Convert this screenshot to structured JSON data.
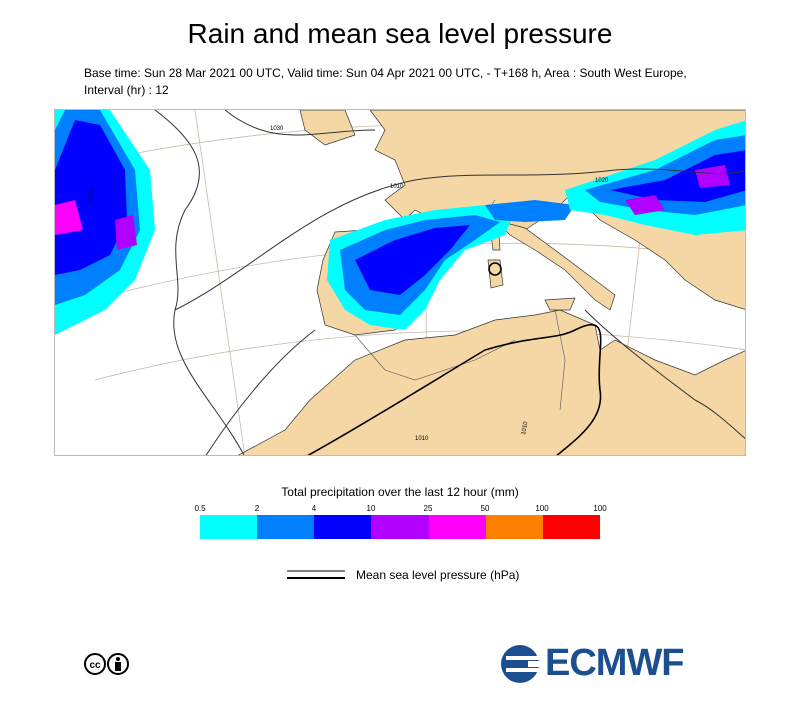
{
  "header": {
    "title": "Rain and mean sea level pressure",
    "subtitle": "Base time: Sun 28 Mar 2021 00 UTC, Valid time: Sun 04 Apr 2021 00 UTC, - T+168 h, Area : South West Europe, Interval (hr) : 12"
  },
  "map": {
    "isobar_labels": [
      "1030",
      "1020",
      "1010",
      "1010",
      "1020",
      "1010"
    ],
    "land_color": "#f5d7a6",
    "sea_color": "#ffffff"
  },
  "legend": {
    "title": "Total precipitation over the last 12 hour (mm)",
    "ticks": [
      "0.5",
      "2",
      "4",
      "10",
      "25",
      "50",
      "100",
      "100"
    ],
    "colors": [
      "#00ffff",
      "#0080ff",
      "#0000ff",
      "#b200ff",
      "#ff00ff",
      "#ff8000",
      "#ff0000"
    ],
    "msl_label": "Mean sea level pressure (hPa)"
  },
  "footer": {
    "logo_text": "ECMWF",
    "license_icon": "cc-by-icon"
  }
}
